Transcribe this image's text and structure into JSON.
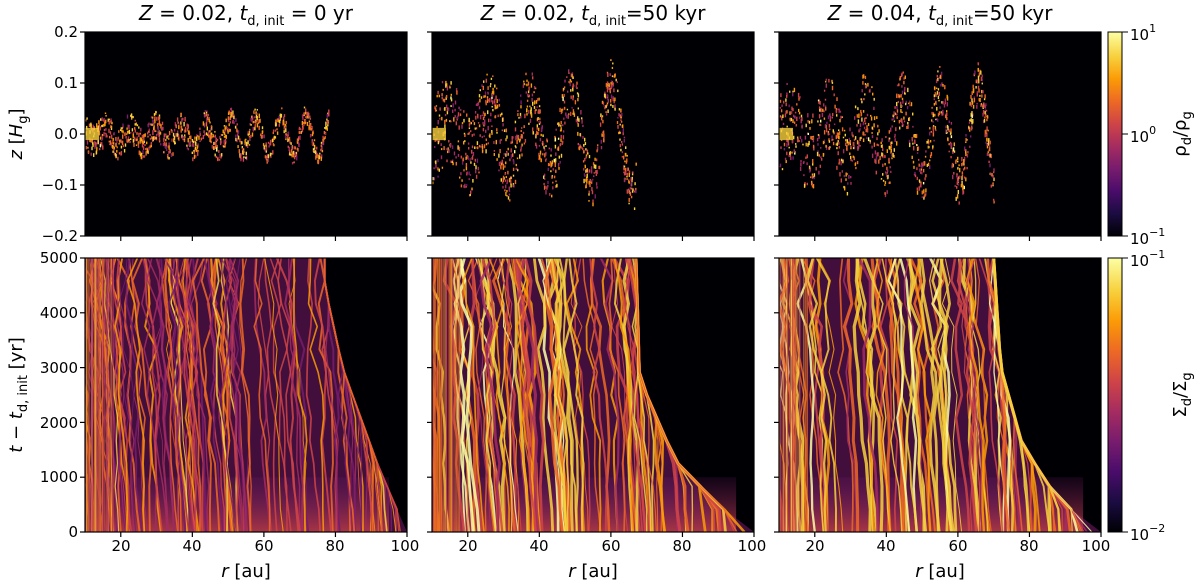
{
  "chart_data": [
    {
      "type": "heatmap",
      "panel": "top-left",
      "title": "Z = 0.02, t_d,init = 0 yr",
      "xlabel": "",
      "ylabel": "z [H_g]",
      "xlim": [
        10,
        100
      ],
      "ylim": [
        -0.2,
        0.2
      ],
      "yticks": [
        "−0.2",
        "−0.1",
        "0.0",
        "0.1",
        "0.2"
      ],
      "colorbar": "rho_d/rho_g",
      "feature_extent_r": [
        10,
        78
      ],
      "feature_max_abs_z": 0.06
    },
    {
      "type": "heatmap",
      "panel": "top-middle",
      "title": "Z = 0.02, t_d,init = 50 kyr",
      "xlim": [
        10,
        100
      ],
      "ylim": [
        -0.2,
        0.2
      ],
      "colorbar": "rho_d/rho_g",
      "feature_extent_r": [
        10,
        67
      ],
      "feature_max_abs_z": 0.16
    },
    {
      "type": "heatmap",
      "panel": "top-right",
      "title": "Z = 0.04, t_d,init = 50 kyr",
      "xlim": [
        10,
        100
      ],
      "ylim": [
        -0.2,
        0.2
      ],
      "colorbar": "rho_d/rho_g",
      "colorbar_range": [
        0.1,
        10
      ],
      "colorbar_ticks": [
        "10^1",
        "10^0",
        "10^-1"
      ],
      "feature_extent_r": [
        10,
        70
      ],
      "feature_max_abs_z": 0.15
    },
    {
      "type": "heatmap",
      "panel": "bottom-left",
      "xlabel": "r [au]",
      "ylabel": "t − t_d,init [yr]",
      "xlim": [
        10,
        100
      ],
      "ylim": [
        0,
        5000
      ],
      "xticks": [
        20,
        40,
        60,
        80,
        100
      ],
      "yticks": [
        0,
        1000,
        2000,
        3000,
        4000,
        5000
      ],
      "colorbar": "Sigma_d/Sigma_g",
      "front_r_at_t": [
        [
          100,
          0
        ],
        [
          92,
          1200
        ],
        [
          82,
          3000
        ],
        [
          77,
          4500
        ],
        [
          77,
          5000
        ]
      ]
    },
    {
      "type": "heatmap",
      "panel": "bottom-middle",
      "xlabel": "r [au]",
      "xlim": [
        10,
        100
      ],
      "ylim": [
        0,
        5000
      ],
      "xticks": [
        20,
        40,
        60,
        80,
        100
      ],
      "colorbar": "Sigma_d/Sigma_g",
      "front_r_at_t": [
        [
          100,
          0
        ],
        [
          90,
          500
        ],
        [
          78,
          1300
        ],
        [
          68,
          2800
        ],
        [
          67,
          5000
        ]
      ]
    },
    {
      "type": "heatmap",
      "panel": "bottom-right",
      "xlabel": "r [au]",
      "xlim": [
        10,
        100
      ],
      "ylim": [
        0,
        5000
      ],
      "xticks": [
        20,
        40,
        60,
        80,
        100
      ],
      "colorbar": "Sigma_d/Sigma_g",
      "colorbar_range": [
        0.01,
        0.1
      ],
      "colorbar_ticks": [
        "10^-1",
        "10^-2"
      ],
      "front_r_at_t": [
        [
          100,
          0
        ],
        [
          88,
          600
        ],
        [
          78,
          1600
        ],
        [
          72,
          3000
        ],
        [
          70,
          5000
        ]
      ]
    }
  ],
  "text": {
    "title1": {
      "a": "Z",
      "b": " = 0.02, ",
      "c": "t",
      "sub": "d, init",
      "d": " = 0 yr"
    },
    "title2": {
      "a": "Z",
      "b": " = 0.02, ",
      "c": "t",
      "sub": "d, init",
      "d": "=50 kyr"
    },
    "title3": {
      "a": "Z",
      "b": " = 0.04, ",
      "c": "t",
      "sub": "d, init",
      "d": "=50 kyr"
    },
    "ylabel_top": {
      "a": "z",
      "b": " [",
      "c": "H",
      "sub": "g",
      "d": "]"
    },
    "ylabel_bottom": {
      "a": "t",
      "b": " − ",
      "c": "t",
      "sub": "d, init",
      "d": " [yr]"
    },
    "xlabel": {
      "a": "r",
      "b": " [au]"
    },
    "cb_top": {
      "a": "ρ",
      "sub1": "d",
      "b": "/",
      "c": "ρ",
      "sub2": "g"
    },
    "cb_bottom": {
      "a": "Σ",
      "sub1": "d",
      "b": "/",
      "c": "Σ",
      "sub2": "g"
    },
    "cb_top_ticks": [
      {
        "base": "10",
        "exp": "1"
      },
      {
        "base": "10",
        "exp": "0"
      },
      {
        "base": "10",
        "exp": "−1"
      }
    ],
    "cb_bottom_ticks": [
      {
        "base": "10",
        "exp": "−1"
      },
      {
        "base": "10",
        "exp": "−2"
      }
    ],
    "top_yticks": [
      "0.2",
      "0.1",
      "0.0",
      "−0.1",
      "−0.2"
    ],
    "bottom_yticks": [
      "5000",
      "4000",
      "3000",
      "2000",
      "1000",
      "0"
    ],
    "xticks": [
      "20",
      "40",
      "60",
      "80",
      "100"
    ]
  },
  "colors": {
    "background": "#000004",
    "colormap": [
      "#000004",
      "#1b0c41",
      "#4a0c6b",
      "#781c6d",
      "#a52c60",
      "#cf4446",
      "#ed6925",
      "#fb9b06",
      "#f7d13d",
      "#fcffa4"
    ]
  }
}
